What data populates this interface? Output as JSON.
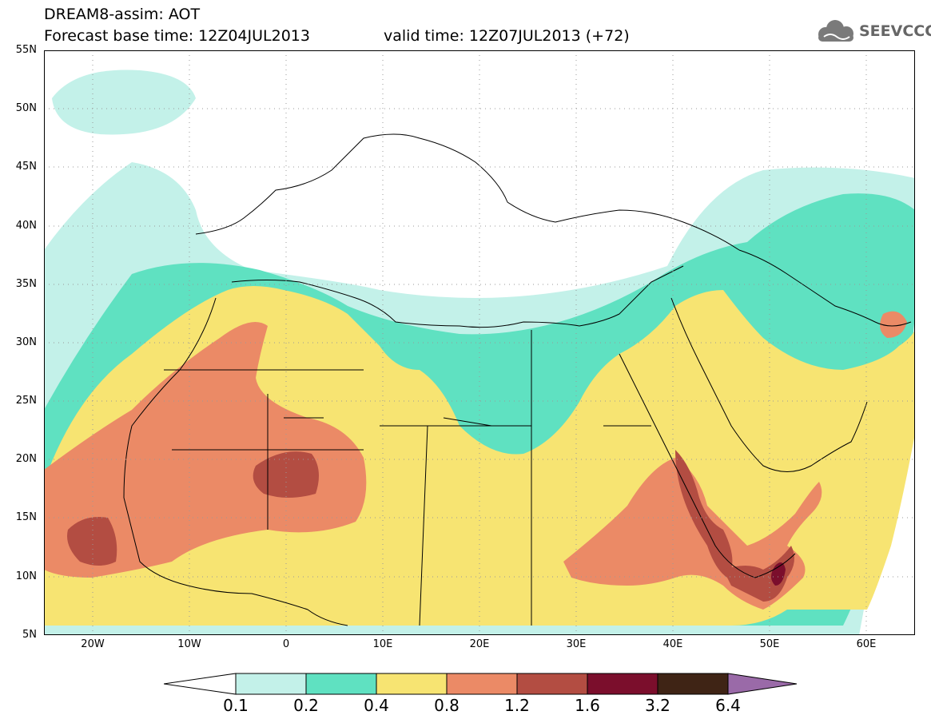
{
  "header": {
    "title": "DREAM8-assim: AOT",
    "base_time": "Forecast base time: 12Z04JUL2013",
    "valid_time": "valid time: 12Z07JUL2013 (+72)",
    "logo_text": "SEEVCCC",
    "logo_icon": "cloud-logo-icon"
  },
  "map": {
    "lat_labels": [
      "55N",
      "50N",
      "45N",
      "40N",
      "35N",
      "30N",
      "25N",
      "20N",
      "15N",
      "10N",
      "5N"
    ],
    "lon_labels": [
      "20W",
      "10W",
      "0",
      "10E",
      "20E",
      "30E",
      "40E",
      "50E",
      "60E"
    ],
    "lon_range": [
      -25,
      65
    ],
    "lat_range": [
      5,
      55
    ],
    "grid": "dotted"
  },
  "legend": {
    "levels": [
      "0.1",
      "0.2",
      "0.4",
      "0.8",
      "1.2",
      "1.6",
      "3.2",
      "6.4"
    ],
    "colors": [
      "#ffffff",
      "#c3f1e9",
      "#5fe1c1",
      "#f7e472",
      "#eb8a66",
      "#b34d42",
      "#7b0e2c",
      "#3f2415",
      "#9a6aa8"
    ]
  }
}
